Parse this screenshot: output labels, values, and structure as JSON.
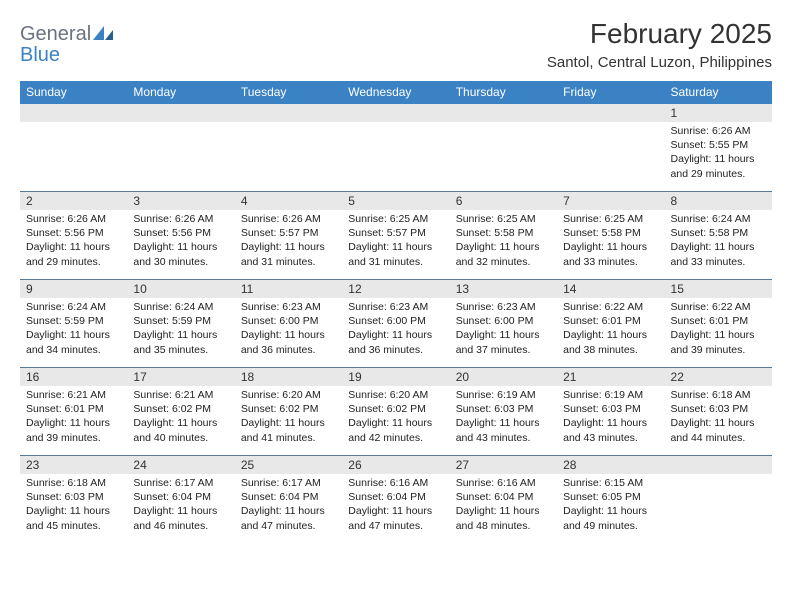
{
  "logo": {
    "general": "General",
    "blue": "Blue"
  },
  "title": "February 2025",
  "location": "Santol, Central Luzon, Philippines",
  "colors": {
    "header_bg": "#3b82c4",
    "header_text": "#ffffff",
    "daynum_bg": "#e8e8e8",
    "row_border": "#5a7a9a",
    "logo_gray": "#6b7280",
    "logo_blue": "#3b82c4",
    "page_bg": "#ffffff",
    "text": "#222222"
  },
  "weekdays": [
    "Sunday",
    "Monday",
    "Tuesday",
    "Wednesday",
    "Thursday",
    "Friday",
    "Saturday"
  ],
  "weeks": [
    [
      null,
      null,
      null,
      null,
      null,
      null,
      {
        "n": "1",
        "sunrise": "Sunrise: 6:26 AM",
        "sunset": "Sunset: 5:55 PM",
        "daylight": "Daylight: 11 hours and 29 minutes."
      }
    ],
    [
      {
        "n": "2",
        "sunrise": "Sunrise: 6:26 AM",
        "sunset": "Sunset: 5:56 PM",
        "daylight": "Daylight: 11 hours and 29 minutes."
      },
      {
        "n": "3",
        "sunrise": "Sunrise: 6:26 AM",
        "sunset": "Sunset: 5:56 PM",
        "daylight": "Daylight: 11 hours and 30 minutes."
      },
      {
        "n": "4",
        "sunrise": "Sunrise: 6:26 AM",
        "sunset": "Sunset: 5:57 PM",
        "daylight": "Daylight: 11 hours and 31 minutes."
      },
      {
        "n": "5",
        "sunrise": "Sunrise: 6:25 AM",
        "sunset": "Sunset: 5:57 PM",
        "daylight": "Daylight: 11 hours and 31 minutes."
      },
      {
        "n": "6",
        "sunrise": "Sunrise: 6:25 AM",
        "sunset": "Sunset: 5:58 PM",
        "daylight": "Daylight: 11 hours and 32 minutes."
      },
      {
        "n": "7",
        "sunrise": "Sunrise: 6:25 AM",
        "sunset": "Sunset: 5:58 PM",
        "daylight": "Daylight: 11 hours and 33 minutes."
      },
      {
        "n": "8",
        "sunrise": "Sunrise: 6:24 AM",
        "sunset": "Sunset: 5:58 PM",
        "daylight": "Daylight: 11 hours and 33 minutes."
      }
    ],
    [
      {
        "n": "9",
        "sunrise": "Sunrise: 6:24 AM",
        "sunset": "Sunset: 5:59 PM",
        "daylight": "Daylight: 11 hours and 34 minutes."
      },
      {
        "n": "10",
        "sunrise": "Sunrise: 6:24 AM",
        "sunset": "Sunset: 5:59 PM",
        "daylight": "Daylight: 11 hours and 35 minutes."
      },
      {
        "n": "11",
        "sunrise": "Sunrise: 6:23 AM",
        "sunset": "Sunset: 6:00 PM",
        "daylight": "Daylight: 11 hours and 36 minutes."
      },
      {
        "n": "12",
        "sunrise": "Sunrise: 6:23 AM",
        "sunset": "Sunset: 6:00 PM",
        "daylight": "Daylight: 11 hours and 36 minutes."
      },
      {
        "n": "13",
        "sunrise": "Sunrise: 6:23 AM",
        "sunset": "Sunset: 6:00 PM",
        "daylight": "Daylight: 11 hours and 37 minutes."
      },
      {
        "n": "14",
        "sunrise": "Sunrise: 6:22 AM",
        "sunset": "Sunset: 6:01 PM",
        "daylight": "Daylight: 11 hours and 38 minutes."
      },
      {
        "n": "15",
        "sunrise": "Sunrise: 6:22 AM",
        "sunset": "Sunset: 6:01 PM",
        "daylight": "Daylight: 11 hours and 39 minutes."
      }
    ],
    [
      {
        "n": "16",
        "sunrise": "Sunrise: 6:21 AM",
        "sunset": "Sunset: 6:01 PM",
        "daylight": "Daylight: 11 hours and 39 minutes."
      },
      {
        "n": "17",
        "sunrise": "Sunrise: 6:21 AM",
        "sunset": "Sunset: 6:02 PM",
        "daylight": "Daylight: 11 hours and 40 minutes."
      },
      {
        "n": "18",
        "sunrise": "Sunrise: 6:20 AM",
        "sunset": "Sunset: 6:02 PM",
        "daylight": "Daylight: 11 hours and 41 minutes."
      },
      {
        "n": "19",
        "sunrise": "Sunrise: 6:20 AM",
        "sunset": "Sunset: 6:02 PM",
        "daylight": "Daylight: 11 hours and 42 minutes."
      },
      {
        "n": "20",
        "sunrise": "Sunrise: 6:19 AM",
        "sunset": "Sunset: 6:03 PM",
        "daylight": "Daylight: 11 hours and 43 minutes."
      },
      {
        "n": "21",
        "sunrise": "Sunrise: 6:19 AM",
        "sunset": "Sunset: 6:03 PM",
        "daylight": "Daylight: 11 hours and 43 minutes."
      },
      {
        "n": "22",
        "sunrise": "Sunrise: 6:18 AM",
        "sunset": "Sunset: 6:03 PM",
        "daylight": "Daylight: 11 hours and 44 minutes."
      }
    ],
    [
      {
        "n": "23",
        "sunrise": "Sunrise: 6:18 AM",
        "sunset": "Sunset: 6:03 PM",
        "daylight": "Daylight: 11 hours and 45 minutes."
      },
      {
        "n": "24",
        "sunrise": "Sunrise: 6:17 AM",
        "sunset": "Sunset: 6:04 PM",
        "daylight": "Daylight: 11 hours and 46 minutes."
      },
      {
        "n": "25",
        "sunrise": "Sunrise: 6:17 AM",
        "sunset": "Sunset: 6:04 PM",
        "daylight": "Daylight: 11 hours and 47 minutes."
      },
      {
        "n": "26",
        "sunrise": "Sunrise: 6:16 AM",
        "sunset": "Sunset: 6:04 PM",
        "daylight": "Daylight: 11 hours and 47 minutes."
      },
      {
        "n": "27",
        "sunrise": "Sunrise: 6:16 AM",
        "sunset": "Sunset: 6:04 PM",
        "daylight": "Daylight: 11 hours and 48 minutes."
      },
      {
        "n": "28",
        "sunrise": "Sunrise: 6:15 AM",
        "sunset": "Sunset: 6:05 PM",
        "daylight": "Daylight: 11 hours and 49 minutes."
      },
      null
    ]
  ]
}
